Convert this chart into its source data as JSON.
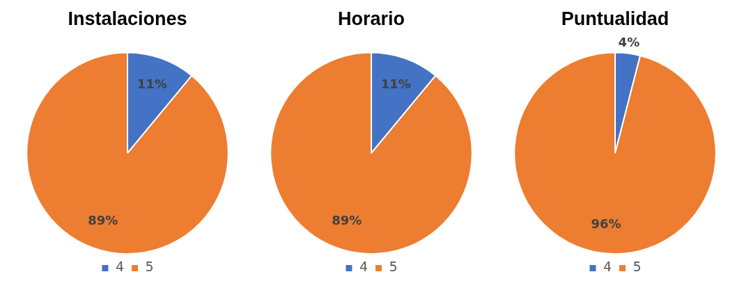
{
  "chart_data": [
    {
      "type": "pie",
      "title": "Instalaciones",
      "categories": [
        "4",
        "5"
      ],
      "values": [
        11,
        89
      ],
      "colors": [
        "#4472c4",
        "#ed7d31"
      ],
      "value_labels": [
        "11%",
        "89%"
      ],
      "legend": "bottom"
    },
    {
      "type": "pie",
      "title": "Horario",
      "categories": [
        "4",
        "5"
      ],
      "values": [
        11,
        89
      ],
      "colors": [
        "#4472c4",
        "#ed7d31"
      ],
      "value_labels": [
        "11%",
        "89%"
      ],
      "legend": "bottom"
    },
    {
      "type": "pie",
      "title": "Puntualidad",
      "categories": [
        "4",
        "5"
      ],
      "values": [
        4,
        96
      ],
      "colors": [
        "#4472c4",
        "#ed7d31"
      ],
      "value_labels": [
        "4%",
        "96%"
      ],
      "legend": "bottom"
    }
  ]
}
